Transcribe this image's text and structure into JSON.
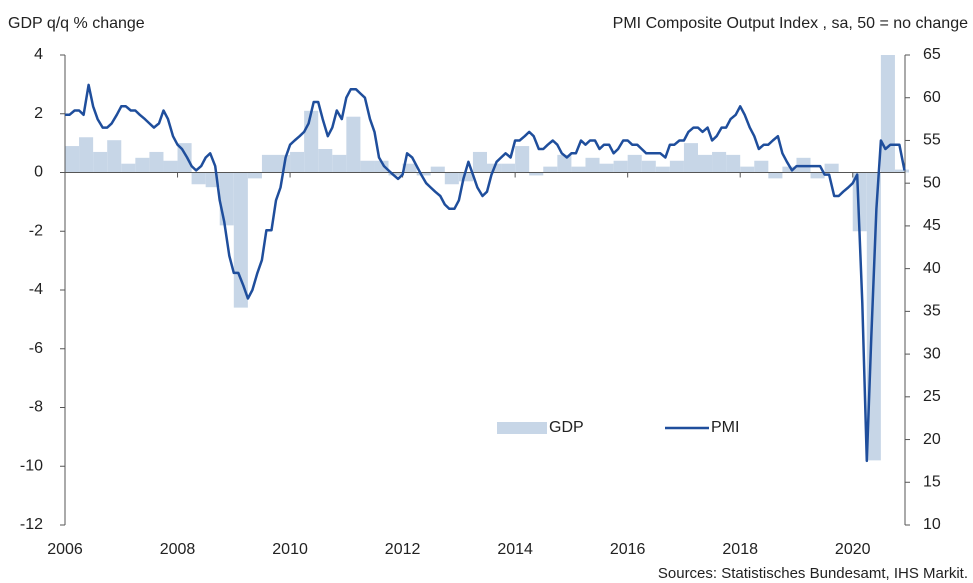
{
  "chart_data": {
    "type": "bar_line",
    "y_label": "GDP q/q % change",
    "y2_label": "PMI Composite  Output Index , sa, 50 = no change",
    "source": "Sources: Statistisches Bundesamt, IHS Markit.",
    "xlim": [
      2006,
      2021
    ],
    "xticks": [
      2006,
      2008,
      2010,
      2012,
      2014,
      2016,
      2018,
      2020
    ],
    "ylim": [
      -12,
      4
    ],
    "yticks": [
      -12,
      -10,
      -8,
      -6,
      -4,
      -2,
      0,
      2,
      4
    ],
    "y2lim": [
      10,
      65
    ],
    "y2ticks": [
      10,
      15,
      20,
      25,
      30,
      35,
      40,
      45,
      50,
      55,
      60,
      65
    ],
    "series": [
      {
        "name": "GDP",
        "type": "bar",
        "color": "#c7d6e7",
        "x": [
          2006,
          2006.25,
          2006.5,
          2006.75,
          2007,
          2007.25,
          2007.5,
          2007.75,
          2008,
          2008.25,
          2008.5,
          2008.75,
          2009,
          2009.25,
          2009.5,
          2009.75,
          2010,
          2010.25,
          2010.5,
          2010.75,
          2011,
          2011.25,
          2011.5,
          2011.75,
          2012,
          2012.25,
          2012.5,
          2012.75,
          2013,
          2013.25,
          2013.5,
          2013.75,
          2014,
          2014.25,
          2014.5,
          2014.75,
          2015,
          2015.25,
          2015.5,
          2015.75,
          2016,
          2016.25,
          2016.5,
          2016.75,
          2017,
          2017.25,
          2017.5,
          2017.75,
          2018,
          2018.25,
          2018.5,
          2018.75,
          2019,
          2019.25,
          2019.5,
          2019.75,
          2020,
          2020.25,
          2020.5,
          2020.75
        ],
        "values": [
          0.9,
          1.2,
          0.7,
          1.1,
          0.3,
          0.5,
          0.7,
          0.4,
          1.0,
          -0.4,
          -0.5,
          -1.8,
          -4.6,
          -0.2,
          0.6,
          0.6,
          0.7,
          2.1,
          0.8,
          0.6,
          1.9,
          0.4,
          0.4,
          -0.1,
          0.3,
          -0.1,
          0.2,
          -0.4,
          -0.3,
          0.7,
          0.3,
          0.3,
          0.9,
          -0.1,
          0.2,
          0.6,
          0.2,
          0.5,
          0.3,
          0.4,
          0.6,
          0.4,
          0.2,
          0.4,
          1.0,
          0.6,
          0.7,
          0.6,
          0.2,
          0.4,
          -0.2,
          0.2,
          0.5,
          -0.2,
          0.3,
          0.0,
          -2.0,
          -9.8,
          4.0,
          0.1
        ]
      },
      {
        "name": "PMI",
        "type": "line",
        "axis": "y2",
        "color": "#1f4e9c",
        "x": [
          2006,
          2006.08,
          2006.17,
          2006.25,
          2006.33,
          2006.42,
          2006.5,
          2006.58,
          2006.67,
          2006.75,
          2006.83,
          2006.92,
          2007,
          2007.08,
          2007.17,
          2007.25,
          2007.33,
          2007.42,
          2007.5,
          2007.58,
          2007.67,
          2007.75,
          2007.83,
          2007.92,
          2008,
          2008.08,
          2008.17,
          2008.25,
          2008.33,
          2008.42,
          2008.5,
          2008.58,
          2008.67,
          2008.75,
          2008.83,
          2008.92,
          2009,
          2009.08,
          2009.17,
          2009.25,
          2009.33,
          2009.42,
          2009.5,
          2009.58,
          2009.67,
          2009.75,
          2009.83,
          2009.92,
          2010,
          2010.08,
          2010.17,
          2010.25,
          2010.33,
          2010.42,
          2010.5,
          2010.58,
          2010.67,
          2010.75,
          2010.83,
          2010.92,
          2011,
          2011.08,
          2011.17,
          2011.25,
          2011.33,
          2011.42,
          2011.5,
          2011.58,
          2011.67,
          2011.75,
          2011.83,
          2011.92,
          2012,
          2012.08,
          2012.17,
          2012.25,
          2012.33,
          2012.42,
          2012.5,
          2012.58,
          2012.67,
          2012.75,
          2012.83,
          2012.92,
          2013,
          2013.08,
          2013.17,
          2013.25,
          2013.33,
          2013.42,
          2013.5,
          2013.58,
          2013.67,
          2013.75,
          2013.83,
          2013.92,
          2014,
          2014.08,
          2014.17,
          2014.25,
          2014.33,
          2014.42,
          2014.5,
          2014.58,
          2014.67,
          2014.75,
          2014.83,
          2014.92,
          2015,
          2015.08,
          2015.17,
          2015.25,
          2015.33,
          2015.42,
          2015.5,
          2015.58,
          2015.67,
          2015.75,
          2015.83,
          2015.92,
          2016,
          2016.08,
          2016.17,
          2016.25,
          2016.33,
          2016.42,
          2016.5,
          2016.58,
          2016.67,
          2016.75,
          2016.83,
          2016.92,
          2017,
          2017.08,
          2017.17,
          2017.25,
          2017.33,
          2017.42,
          2017.5,
          2017.58,
          2017.67,
          2017.75,
          2017.83,
          2017.92,
          2018,
          2018.08,
          2018.17,
          2018.25,
          2018.33,
          2018.42,
          2018.5,
          2018.58,
          2018.67,
          2018.75,
          2018.83,
          2018.92,
          2019,
          2019.08,
          2019.17,
          2019.25,
          2019.33,
          2019.42,
          2019.5,
          2019.58,
          2019.67,
          2019.75,
          2019.83,
          2019.92,
          2020,
          2020.08,
          2020.17,
          2020.25,
          2020.33,
          2020.42,
          2020.5,
          2020.58,
          2020.67,
          2020.75,
          2020.83,
          2020.92
        ],
        "values": [
          58,
          58,
          58.5,
          58.5,
          58,
          61.5,
          59,
          57.5,
          56.5,
          56.5,
          57,
          58,
          59,
          59,
          58.5,
          58.5,
          58,
          57.5,
          57,
          56.5,
          57,
          58.5,
          57.5,
          55.5,
          54.5,
          54,
          53,
          52,
          51.5,
          52,
          53,
          53.5,
          52,
          48,
          45.5,
          41.5,
          39.5,
          39.5,
          38,
          36.5,
          37.5,
          39.5,
          41,
          44.5,
          44.5,
          48,
          49.5,
          53,
          54.5,
          55,
          55.5,
          56,
          57,
          59.5,
          59.5,
          57.5,
          55.5,
          56.5,
          58.5,
          57.5,
          60,
          61,
          61,
          60.5,
          60,
          57.5,
          56,
          53,
          52,
          51.5,
          51,
          50.5,
          51,
          53.5,
          53,
          52,
          51,
          50,
          49.5,
          49,
          48.5,
          47.5,
          47,
          47,
          48,
          50.5,
          52.5,
          51,
          49.5,
          48.5,
          49,
          51,
          52.5,
          53,
          53.5,
          53,
          55,
          55,
          55.5,
          56,
          55.5,
          54,
          54,
          54.5,
          55,
          54.5,
          53.5,
          53,
          53.5,
          53.5,
          55,
          54.5,
          55,
          55,
          54,
          54.5,
          54.5,
          53.5,
          54,
          55,
          55,
          54.5,
          54.5,
          54,
          53.5,
          53.5,
          53.5,
          53.5,
          53,
          54.5,
          54.5,
          55,
          55,
          56,
          56.5,
          56.5,
          56,
          56.5,
          55,
          55.5,
          56.5,
          56.5,
          57.5,
          58,
          59,
          58,
          56.5,
          55.5,
          54,
          54.5,
          54.5,
          55,
          55.5,
          53.5,
          52.5,
          51.5,
          52,
          52,
          52,
          52,
          52,
          52,
          51,
          51,
          48.5,
          48.5,
          49,
          49.5,
          50,
          51,
          36,
          17.5,
          32,
          47,
          55,
          54,
          54.5,
          54.5,
          54.5,
          51.5
        ]
      }
    ]
  }
}
